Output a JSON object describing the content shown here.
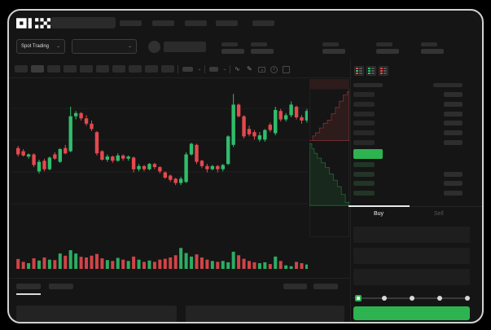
{
  "app": {
    "brand": "OKX"
  },
  "colors": {
    "accent_green": "#2EB351",
    "candle_up": "#2FBE6B",
    "candle_down": "#E4494E",
    "window_bg": "#151515"
  },
  "header": {
    "nav_placeholder_count": 5
  },
  "symbol_bar": {
    "market_selector_label": "Spot Trading",
    "stat_placeholder_count": 5
  },
  "toolbar": {
    "interval_button_count": 10,
    "active_interval_index": 1,
    "icons": [
      "indicator-dropdown",
      "overlay-dropdown",
      "wave-icon",
      "draw-icon",
      "camera-icon",
      "history-icon",
      "fullscreen-icon"
    ]
  },
  "chart_data": {
    "type": "candlestick",
    "ylim": [
      0,
      100
    ],
    "grid": true,
    "ohlc": [
      [
        41,
        43,
        33,
        35
      ],
      [
        38,
        40,
        33,
        34
      ],
      [
        33,
        36,
        31,
        35
      ],
      [
        35,
        36,
        23,
        25
      ],
      [
        19,
        30,
        17,
        28
      ],
      [
        29,
        31,
        19,
        21
      ],
      [
        21,
        33,
        20,
        32
      ],
      [
        35,
        37,
        30,
        31
      ],
      [
        28,
        41,
        27,
        40
      ],
      [
        41,
        44,
        35,
        36
      ],
      [
        38,
        80,
        37,
        71
      ],
      [
        71,
        76,
        68,
        74
      ],
      [
        74,
        75,
        67,
        69
      ],
      [
        69,
        72,
        62,
        64
      ],
      [
        64,
        67,
        57,
        59
      ],
      [
        56,
        57,
        34,
        36
      ],
      [
        38,
        39,
        29,
        30
      ],
      [
        30,
        35,
        28,
        33
      ],
      [
        33,
        34,
        27,
        29
      ],
      [
        29,
        36,
        28,
        34
      ],
      [
        34,
        35,
        29,
        31
      ],
      [
        31,
        34,
        29,
        33
      ],
      [
        32,
        33,
        18,
        21
      ],
      [
        21,
        26,
        19,
        24
      ],
      [
        24,
        25,
        19,
        21
      ],
      [
        21,
        27,
        20,
        26
      ],
      [
        26,
        27,
        21,
        23
      ],
      [
        23,
        24,
        17,
        19
      ],
      [
        18,
        19,
        12,
        13
      ],
      [
        15,
        16,
        9,
        11
      ],
      [
        12,
        13,
        6,
        8
      ],
      [
        8,
        14,
        6,
        12
      ],
      [
        9,
        37,
        8,
        35
      ],
      [
        35,
        46,
        34,
        45
      ],
      [
        44,
        45,
        26,
        28
      ],
      [
        29,
        30,
        22,
        24
      ],
      [
        24,
        26,
        18,
        21
      ],
      [
        21,
        25,
        20,
        24
      ],
      [
        24,
        25,
        18,
        21
      ],
      [
        21,
        26,
        19,
        25
      ],
      [
        26,
        53,
        25,
        52
      ],
      [
        44,
        92,
        42,
        82
      ],
      [
        82,
        83,
        70,
        71
      ],
      [
        71,
        72,
        50,
        52
      ],
      [
        59,
        62,
        52,
        54
      ],
      [
        56,
        58,
        49,
        52
      ],
      [
        49,
        56,
        47,
        53
      ],
      [
        49,
        59,
        47,
        58
      ],
      [
        63,
        65,
        56,
        58
      ],
      [
        55,
        80,
        53,
        77
      ],
      [
        76,
        78,
        66,
        68
      ],
      [
        68,
        74,
        66,
        72
      ],
      [
        72,
        85,
        70,
        82
      ],
      [
        80,
        81,
        68,
        70
      ],
      [
        70,
        72,
        64,
        67
      ],
      [
        67,
        78,
        65,
        76
      ]
    ],
    "volumes": [
      45,
      32,
      26,
      48,
      38,
      52,
      42,
      40,
      70,
      60,
      85,
      70,
      55,
      52,
      60,
      68,
      48,
      40,
      36,
      50,
      42,
      36,
      56,
      42,
      32,
      38,
      32,
      42,
      46,
      52,
      62,
      95,
      72,
      56,
      66,
      52,
      42,
      36,
      32,
      36,
      30,
      78,
      62,
      46,
      36,
      30,
      26,
      30,
      22,
      56,
      36,
      16,
      12,
      32,
      26,
      20
    ],
    "depth_asks": [
      [
        0,
        0.39
      ],
      [
        0.08,
        0.36
      ],
      [
        0.15,
        0.34
      ],
      [
        0.25,
        0.31
      ],
      [
        0.35,
        0.28
      ],
      [
        0.45,
        0.26
      ],
      [
        0.55,
        0.22
      ],
      [
        0.65,
        0.18
      ],
      [
        0.75,
        0.14
      ],
      [
        0.85,
        0.1
      ],
      [
        0.95,
        0.08
      ],
      [
        1,
        0.06
      ]
    ],
    "depth_bids": [
      [
        0,
        0.41
      ],
      [
        0.06,
        0.44
      ],
      [
        0.12,
        0.47
      ],
      [
        0.2,
        0.5
      ],
      [
        0.3,
        0.53
      ],
      [
        0.4,
        0.56
      ],
      [
        0.5,
        0.6
      ],
      [
        0.6,
        0.64
      ],
      [
        0.7,
        0.68
      ],
      [
        0.8,
        0.73
      ],
      [
        0.9,
        0.78
      ],
      [
        1,
        0.8
      ]
    ]
  },
  "order_book": {
    "mode_icons": [
      "book-combined-icon",
      "book-bids-icon",
      "book-asks-icon"
    ],
    "ask_rows": 6,
    "bid_rows": 4,
    "last_price_highlight": "green"
  },
  "trade_panel": {
    "tabs": [
      {
        "label": "Buy",
        "active": true
      },
      {
        "label": "Sell",
        "active": false
      }
    ],
    "field_count": 3,
    "slider_stops": [
      0,
      25,
      50,
      75,
      100
    ],
    "slider_value": 0
  },
  "bottom_bar": {
    "tab_count": 2,
    "right_placeholder_count": 2,
    "panel_count": 2
  }
}
